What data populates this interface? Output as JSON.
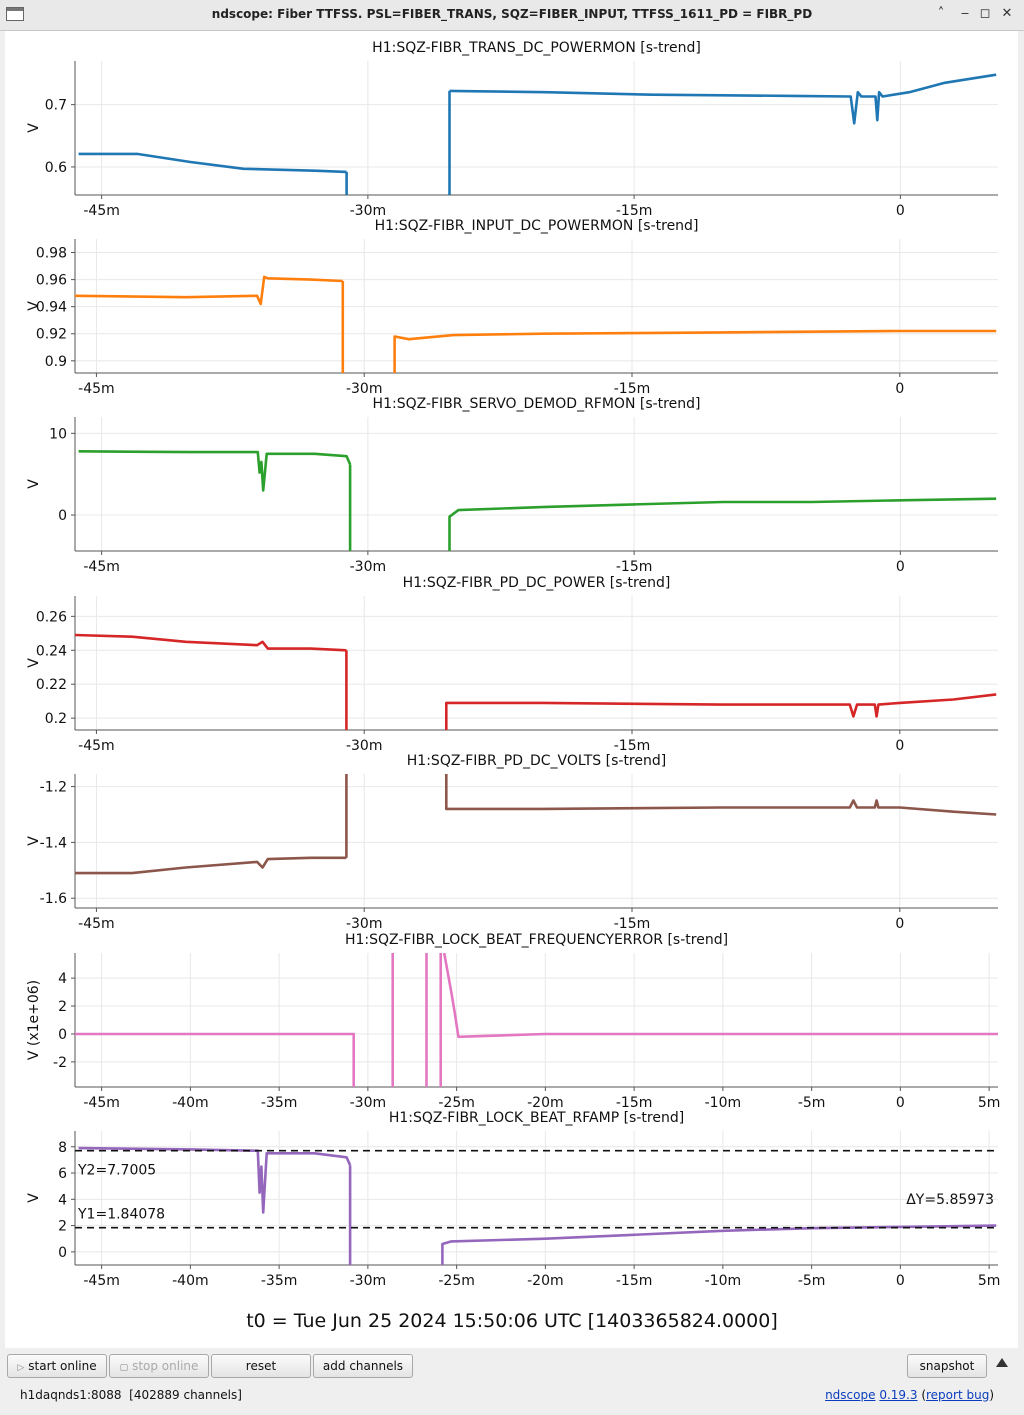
{
  "window": {
    "title": "ndscope: Fiber TTFSS. PSL=FIBER_TRANS, SQZ=FIBER_INPUT, TTFSS_1611_PD = FIBR_PD",
    "controls": [
      "minimize",
      "maximize",
      "close"
    ]
  },
  "plots": [
    {
      "title": "H1:SQZ-FIBR_TRANS_DC_POWERMON [s-trend]",
      "ylabel": "V",
      "color": "#1f77b4",
      "xlim": [
        -46.5,
        5.5
      ],
      "ylim": [
        0.555,
        0.77
      ],
      "yticks": [
        {
          "v": 0.6,
          "label": "0.6"
        },
        {
          "v": 0.7,
          "label": "0.7"
        }
      ],
      "xticks": [
        {
          "v": -45,
          "label": "-45m"
        },
        {
          "v": -30,
          "label": "-30m"
        },
        {
          "v": -15,
          "label": "-15m"
        },
        {
          "v": 0,
          "label": "0"
        }
      ],
      "series": [
        {
          "x": [
            -46.3,
            -43,
            -40,
            -37,
            -33,
            -31.2
          ],
          "y": [
            0.621,
            0.621,
            0.608,
            0.597,
            0.594,
            0.592
          ]
        },
        {
          "x": [
            -31.2,
            -31.2
          ],
          "y": [
            0.592,
            0.555
          ]
        },
        {
          "x": [
            -25.4,
            -25.4
          ],
          "y": [
            0.555,
            0.722
          ]
        },
        {
          "x": [
            -25.4,
            -20,
            -14,
            -10,
            -6,
            -2.8,
            -2.6,
            -2.4,
            -2.2,
            -1.4,
            -1.3,
            -1.2,
            -1.0,
            0.5,
            2.5,
            5.4
          ],
          "y": [
            0.722,
            0.72,
            0.716,
            0.715,
            0.714,
            0.713,
            0.67,
            0.72,
            0.713,
            0.713,
            0.675,
            0.72,
            0.713,
            0.72,
            0.735,
            0.748
          ]
        }
      ]
    },
    {
      "title": "H1:SQZ-FIBR_INPUT_DC_POWERMON [s-trend]",
      "ylabel": "V",
      "color": "#ff7f0e",
      "xlim": [
        -46.2,
        5.5
      ],
      "ylim": [
        0.891,
        0.99
      ],
      "yticks": [
        {
          "v": 0.9,
          "label": "0.9"
        },
        {
          "v": 0.92,
          "label": "0.92"
        },
        {
          "v": 0.94,
          "label": "0.94"
        },
        {
          "v": 0.96,
          "label": "0.96"
        },
        {
          "v": 0.98,
          "label": "0.98"
        }
      ],
      "xticks": [
        {
          "v": -45,
          "label": "-45m"
        },
        {
          "v": -30,
          "label": "-30m"
        },
        {
          "v": -15,
          "label": "-15m"
        },
        {
          "v": 0,
          "label": "0"
        }
      ],
      "series": [
        {
          "x": [
            -46.2,
            -40,
            -36,
            -35.8,
            -35.6,
            -35.4,
            -33,
            -31.2
          ],
          "y": [
            0.948,
            0.947,
            0.948,
            0.942,
            0.962,
            0.961,
            0.96,
            0.959
          ]
        },
        {
          "x": [
            -31.2,
            -31.2
          ],
          "y": [
            0.959,
            0.891
          ]
        },
        {
          "x": [
            -28.3,
            -28.3,
            -27.5,
            -25,
            -20,
            -10,
            0,
            5.4
          ],
          "y": [
            0.891,
            0.918,
            0.916,
            0.919,
            0.92,
            0.921,
            0.922,
            0.922
          ]
        }
      ]
    },
    {
      "title": "H1:SQZ-FIBR_SERVO_DEMOD_RFMON [s-trend]",
      "ylabel": "V",
      "color": "#2ca02c",
      "xlim": [
        -46.5,
        5.5
      ],
      "ylim": [
        -4.4,
        12
      ],
      "yticks": [
        {
          "v": 0,
          "label": "0"
        },
        {
          "v": 10,
          "label": "10"
        }
      ],
      "xticks": [
        {
          "v": -45,
          "label": "-45m"
        },
        {
          "v": -30,
          "label": "-30m"
        },
        {
          "v": -15,
          "label": "-15m"
        },
        {
          "v": 0,
          "label": "0"
        }
      ],
      "series": [
        {
          "x": [
            -46.3,
            -40,
            -36.2,
            -36.1,
            -36.0,
            -35.9,
            -35.7,
            -33,
            -31.2,
            -31.0
          ],
          "y": [
            7.8,
            7.7,
            7.7,
            5.2,
            6.5,
            3.0,
            7.5,
            7.5,
            7.2,
            6.2
          ]
        },
        {
          "x": [
            -31.0,
            -31.0
          ],
          "y": [
            6.2,
            -4.4
          ]
        },
        {
          "x": [
            -25.4,
            -25.4,
            -24.9,
            -20,
            -15,
            -10,
            -5,
            0,
            5.4
          ],
          "y": [
            -4.4,
            -0.2,
            0.6,
            1.0,
            1.3,
            1.6,
            1.6,
            1.8,
            2.0
          ]
        }
      ]
    },
    {
      "title": "H1:SQZ-FIBR_PD_DC_POWER [s-trend]",
      "ylabel": "V",
      "color": "#d62728",
      "xlim": [
        -46.2,
        5.5
      ],
      "ylim": [
        0.193,
        0.272
      ],
      "yticks": [
        {
          "v": 0.2,
          "label": "0.2"
        },
        {
          "v": 0.22,
          "label": "0.22"
        },
        {
          "v": 0.24,
          "label": "0.24"
        },
        {
          "v": 0.26,
          "label": "0.26"
        }
      ],
      "xticks": [
        {
          "v": -45,
          "label": "-45m"
        },
        {
          "v": -30,
          "label": "-30m"
        },
        {
          "v": -15,
          "label": "-15m"
        },
        {
          "v": 0,
          "label": "0"
        }
      ],
      "series": [
        {
          "x": [
            -46.2,
            -43,
            -40,
            -36,
            -35.7,
            -35.4,
            -33,
            -31.0
          ],
          "y": [
            0.249,
            0.248,
            0.245,
            0.243,
            0.245,
            0.241,
            0.241,
            0.24
          ]
        },
        {
          "x": [
            -31.0,
            -31.0
          ],
          "y": [
            0.24,
            0.193
          ]
        },
        {
          "x": [
            -25.4,
            -25.4,
            -20,
            -10,
            -2.8,
            -2.6,
            -2.4,
            -1.4,
            -1.3,
            -1.2,
            0,
            3,
            5.4
          ],
          "y": [
            0.193,
            0.209,
            0.209,
            0.208,
            0.208,
            0.201,
            0.208,
            0.208,
            0.201,
            0.208,
            0.209,
            0.211,
            0.214
          ]
        }
      ]
    },
    {
      "title": "H1:SQZ-FIBR_PD_DC_VOLTS [s-trend]",
      "ylabel": "V",
      "color": "#8c564b",
      "xlim": [
        -46.2,
        5.5
      ],
      "ylim": [
        -1.635,
        -1.155
      ],
      "yticks": [
        {
          "v": -1.6,
          "label": "-1.6"
        },
        {
          "v": -1.4,
          "label": "-1.4"
        },
        {
          "v": -1.2,
          "label": "-1.2"
        }
      ],
      "xticks": [
        {
          "v": -45,
          "label": "-45m"
        },
        {
          "v": -30,
          "label": "-30m"
        },
        {
          "v": -15,
          "label": "-15m"
        },
        {
          "v": 0,
          "label": "0"
        }
      ],
      "series": [
        {
          "x": [
            -46.2,
            -43,
            -40,
            -36,
            -35.7,
            -35.4,
            -33,
            -31.0
          ],
          "y": [
            -1.51,
            -1.51,
            -1.49,
            -1.47,
            -1.49,
            -1.46,
            -1.455,
            -1.455
          ]
        },
        {
          "x": [
            -31.0,
            -31.0
          ],
          "y": [
            -1.455,
            -1.155
          ]
        },
        {
          "x": [
            -25.4,
            -25.4,
            -20,
            -10,
            -2.8,
            -2.6,
            -2.4,
            -1.4,
            -1.3,
            -1.2,
            0,
            3,
            5.4
          ],
          "y": [
            -1.155,
            -1.28,
            -1.28,
            -1.275,
            -1.275,
            -1.25,
            -1.275,
            -1.275,
            -1.25,
            -1.275,
            -1.275,
            -1.29,
            -1.3
          ]
        }
      ]
    },
    {
      "title": "H1:SQZ-FIBR_LOCK_BEAT_FREQUENCYERROR [s-trend]",
      "ylabel": "V (x1e+06)",
      "color": "#e377c2",
      "xlim": [
        -46.5,
        5.5
      ],
      "ylim": [
        -3.8,
        5.8
      ],
      "yticks": [
        {
          "v": -2,
          "label": "-2"
        },
        {
          "v": 0,
          "label": "0"
        },
        {
          "v": 2,
          "label": "2"
        },
        {
          "v": 4,
          "label": "4"
        }
      ],
      "xticks": [
        {
          "v": -45,
          "label": "-45m"
        },
        {
          "v": -40,
          "label": "-40m"
        },
        {
          "v": -35,
          "label": "-35m"
        },
        {
          "v": -30,
          "label": "-30m"
        },
        {
          "v": -25,
          "label": "-25m"
        },
        {
          "v": -20,
          "label": "-20m"
        },
        {
          "v": -15,
          "label": "-15m"
        },
        {
          "v": -10,
          "label": "-10m"
        },
        {
          "v": -5,
          "label": "-5m"
        },
        {
          "v": 0,
          "label": "0"
        },
        {
          "v": 5,
          "label": "5m"
        }
      ],
      "series": [
        {
          "x": [
            -46.5,
            -30.8,
            -30.8
          ],
          "y": [
            0,
            0,
            -3.8
          ]
        },
        {
          "x": [
            -28.6,
            -28.6
          ],
          "y": [
            -3.8,
            5.8
          ]
        },
        {
          "x": [
            -26.7,
            -26.7
          ],
          "y": [
            5.8,
            -3.8
          ]
        },
        {
          "x": [
            -25.9,
            -25.9
          ],
          "y": [
            -3.8,
            5.8
          ]
        },
        {
          "x": [
            -25.7,
            -25.3,
            -25.1,
            -24.9,
            -20,
            -10,
            0,
            5.5
          ],
          "y": [
            5.8,
            3.0,
            1.5,
            -0.2,
            0,
            0,
            0,
            0
          ]
        }
      ]
    },
    {
      "title": "H1:SQZ-FIBR_LOCK_BEAT_RFAMP [s-trend]",
      "ylabel": "V",
      "color": "#9467bd",
      "xlim": [
        -46.5,
        5.5
      ],
      "ylim": [
        -1,
        9.2
      ],
      "yticks": [
        {
          "v": 0,
          "label": "0"
        },
        {
          "v": 2,
          "label": "2"
        },
        {
          "v": 4,
          "label": "4"
        },
        {
          "v": 6,
          "label": "6"
        },
        {
          "v": 8,
          "label": "8"
        }
      ],
      "xticks": [
        {
          "v": -45,
          "label": "-45m"
        },
        {
          "v": -40,
          "label": "-40m"
        },
        {
          "v": -35,
          "label": "-35m"
        },
        {
          "v": -30,
          "label": "-30m"
        },
        {
          "v": -25,
          "label": "-25m"
        },
        {
          "v": -20,
          "label": "-20m"
        },
        {
          "v": -15,
          "label": "-15m"
        },
        {
          "v": -10,
          "label": "-10m"
        },
        {
          "v": -5,
          "label": "-5m"
        },
        {
          "v": 0,
          "label": "0"
        },
        {
          "v": 5,
          "label": "5m"
        }
      ],
      "series": [
        {
          "x": [
            -46.3,
            -40,
            -36.2,
            -36.1,
            -36.0,
            -35.9,
            -35.7,
            -33,
            -31.2,
            -31.0
          ],
          "y": [
            7.9,
            7.8,
            7.7,
            4.5,
            6.5,
            3.0,
            7.5,
            7.5,
            7.2,
            6.6
          ]
        },
        {
          "x": [
            -31.0,
            -31.0
          ],
          "y": [
            6.6,
            -1
          ]
        },
        {
          "x": [
            -25.8,
            -25.8,
            -25.3,
            -20,
            -15,
            -10,
            -5,
            0,
            5.4
          ],
          "y": [
            -1,
            0.6,
            0.8,
            1.0,
            1.3,
            1.6,
            1.8,
            1.9,
            2.0
          ]
        }
      ],
      "cursors": [
        {
          "y": 7.7005,
          "label": "Y2=7.7005"
        },
        {
          "y": 1.84078,
          "label": "Y1=1.84078"
        }
      ],
      "delta_label": "ΔY=5.85973"
    }
  ],
  "t0_label": "t0 = Tue Jun 25 2024 15:50:06 UTC [1403365824.0000]",
  "toolbar": {
    "start_online": "start online",
    "stop_online": "stop online",
    "reset": "reset",
    "add_channels": "add channels",
    "snapshot": "snapshot"
  },
  "status": {
    "server": "h1daqnds1:8088",
    "channels": "[402889 channels]",
    "app_name": "ndscope",
    "version": "0.19.3",
    "report_bug": "report bug"
  }
}
